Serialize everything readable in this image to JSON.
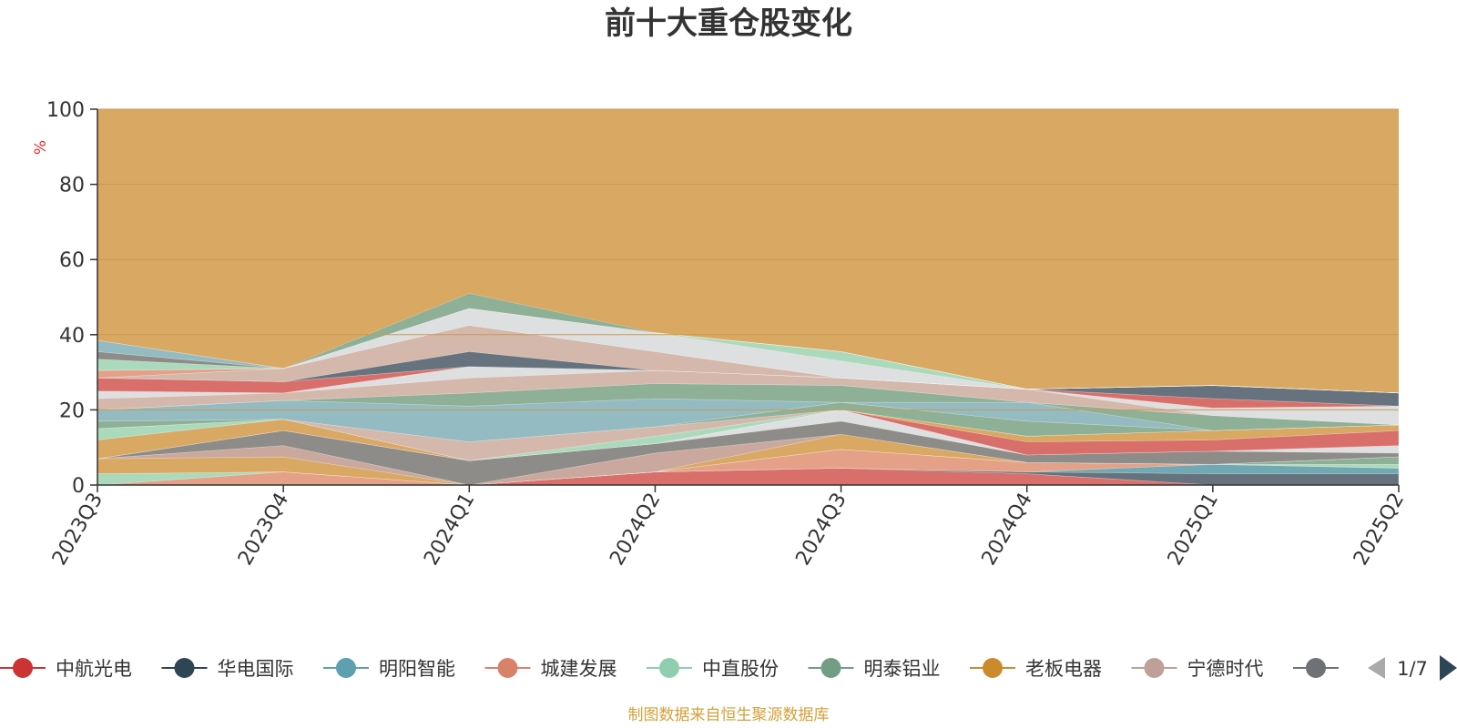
{
  "chart_data": {
    "type": "area",
    "title": "前十大重仓股变化",
    "ylabel": "%",
    "xlabel": "",
    "ylim": [
      0,
      100
    ],
    "y_ticks": [
      0,
      20,
      40,
      60,
      80,
      100
    ],
    "categories": [
      "2023Q3",
      "2023Q4",
      "2024Q1",
      "2024Q2",
      "2024Q3",
      "2024Q4",
      "2025Q1",
      "2025Q2"
    ],
    "grid": true,
    "stacked": true,
    "background_series_color": "#d9a862",
    "series": [
      {
        "name": "中航光电",
        "color": "#d96b6b",
        "values": [
          0,
          0,
          0,
          3.5,
          4.5,
          3.0,
          0,
          0
        ]
      },
      {
        "name": "华电国际",
        "color": "#607080",
        "values": [
          0,
          0,
          0,
          0,
          0,
          0.5,
          3.0,
          3.0
        ]
      },
      {
        "name": "明阳智能",
        "color": "#6aa8b8",
        "values": [
          0,
          0,
          0,
          0,
          0,
          0,
          2.5,
          1.5
        ]
      },
      {
        "name": "城建发展",
        "color": "#e5a08a",
        "values": [
          0,
          3.5,
          0,
          0,
          5.0,
          2.5,
          0,
          0
        ]
      },
      {
        "name": "中直股份",
        "color": "#a8dcc0",
        "values": [
          3.0,
          0,
          0,
          0,
          0,
          0,
          0,
          1.0
        ]
      },
      {
        "name": "明泰铝业",
        "color": "#8ab09a",
        "values": [
          0,
          0,
          0,
          0,
          0,
          0,
          0,
          2.0
        ]
      },
      {
        "name": "老板电器",
        "color": "#d9a862",
        "values": [
          4.0,
          4.0,
          0,
          0,
          4.0,
          0,
          0,
          0
        ]
      },
      {
        "name": "宁德时代",
        "color": "#c9a8a0",
        "values": [
          0,
          3.0,
          0,
          5.0,
          0,
          0,
          0,
          0
        ]
      },
      {
        "name": "",
        "color": "#8a8a8a",
        "values": [
          0,
          4.0,
          6.5,
          2.5,
          3.5,
          2.0,
          3.5,
          1.0
        ]
      },
      {
        "name": "",
        "color": "#dde2e8",
        "values": [
          0,
          0,
          0,
          0,
          3.0,
          0,
          0,
          2.0
        ]
      },
      {
        "name": "",
        "color": "#d96b6b",
        "values": [
          0,
          0,
          0,
          0,
          0,
          3.5,
          3.0,
          4.0
        ]
      },
      {
        "name": "",
        "color": "#d9a862",
        "values": [
          5.0,
          3.0,
          0,
          0,
          0,
          1.5,
          2.5,
          1.5
        ]
      },
      {
        "name": "",
        "color": "#a8dcc0",
        "values": [
          3.0,
          0,
          0,
          2.0,
          0,
          0,
          0,
          0
        ]
      },
      {
        "name": "",
        "color": "#d4b8b0",
        "values": [
          0,
          0,
          5.0,
          2.5,
          0,
          0,
          0,
          0
        ]
      },
      {
        "name": "",
        "color": "#8ab09a",
        "values": [
          2.0,
          0,
          0,
          0,
          2.0,
          4.0,
          0,
          0
        ]
      },
      {
        "name": "",
        "color": "#8fbcc6",
        "values": [
          3.0,
          5.0,
          9.5,
          7.5,
          0,
          5.0,
          0,
          0
        ]
      },
      {
        "name": "",
        "color": "#8ab09a",
        "values": [
          0,
          0,
          3.5,
          4.0,
          4.5,
          0,
          4.0,
          0
        ]
      },
      {
        "name": "",
        "color": "#d4b8b0",
        "values": [
          3.0,
          2.0,
          4.0,
          3.5,
          2.0,
          3.5,
          0,
          0
        ]
      },
      {
        "name": "",
        "color": "#dde2e8",
        "values": [
          2.0,
          0,
          3.0,
          0,
          0,
          0,
          2.0,
          5.0
        ]
      },
      {
        "name": "",
        "color": "#d96b6b",
        "values": [
          3.5,
          3.0,
          0,
          0,
          0,
          0,
          2.5,
          0
        ]
      },
      {
        "name": "",
        "color": "#607080",
        "values": [
          0,
          0,
          4.0,
          0,
          0,
          0,
          3.5,
          3.5
        ]
      },
      {
        "name": "",
        "color": "#d4b8b0",
        "values": [
          0,
          3.5,
          7.0,
          5.0,
          0,
          0,
          0,
          0
        ]
      },
      {
        "name": "",
        "color": "#e5a08a",
        "values": [
          2.0,
          0,
          0,
          0,
          0,
          0,
          0,
          0
        ]
      },
      {
        "name": "",
        "color": "#dde2e8",
        "values": [
          0,
          0,
          4.5,
          5.0,
          4.5,
          0,
          0,
          0
        ]
      },
      {
        "name": "",
        "color": "#a8dcc0",
        "values": [
          3.0,
          0,
          0,
          0,
          2.5,
          0,
          0,
          0
        ]
      },
      {
        "name": "",
        "color": "#8a8a8a",
        "values": [
          2.0,
          0,
          0,
          0,
          0,
          0,
          0,
          0
        ]
      },
      {
        "name": "",
        "color": "#8fbcc6",
        "values": [
          3.0,
          0,
          0,
          0,
          0,
          0,
          0,
          0
        ]
      },
      {
        "name": "",
        "color": "#8ab09a",
        "values": [
          0,
          0,
          4.0,
          0,
          0,
          0,
          0,
          0
        ]
      }
    ],
    "legend": {
      "items": [
        {
          "name": "中航光电",
          "color": "#cc3333"
        },
        {
          "name": "华电国际",
          "color": "#2e4556"
        },
        {
          "name": "明阳智能",
          "color": "#5e9fb0"
        },
        {
          "name": "城建发展",
          "color": "#d8826a"
        },
        {
          "name": "中直股份",
          "color": "#8fcfb0"
        },
        {
          "name": "明泰铝业",
          "color": "#739e86"
        },
        {
          "name": "老板电器",
          "color": "#cc8a2e"
        },
        {
          "name": "宁德时代",
          "color": "#bfa098"
        },
        {
          "name": "",
          "color": "#6e7276"
        }
      ],
      "page": "1/7",
      "placement": "bottom"
    }
  },
  "footer": {
    "source_text": "制图数据来自恒生聚源数据库"
  },
  "colors": {
    "title": "#333333",
    "axis": "#333333",
    "ylabel": "#e03030",
    "footer": "#d4a03a",
    "grid": "#c99a55",
    "pager_active": "#2e4556",
    "pager_inactive": "#aaaaaa"
  },
  "icons": {
    "prev": "triangle-left-icon",
    "next": "triangle-right-icon"
  }
}
